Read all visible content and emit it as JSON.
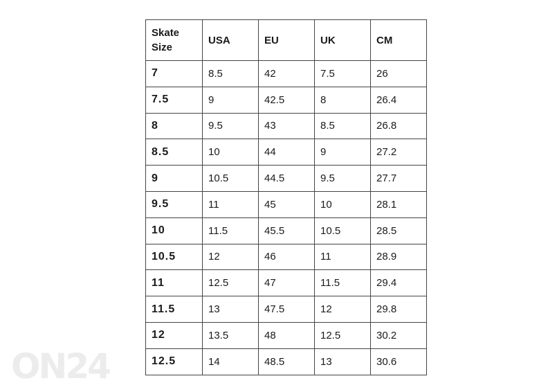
{
  "watermark": "ON24",
  "table": {
    "headers": [
      "Skate Size",
      "USA",
      "EU",
      "UK",
      "CM"
    ],
    "rows": [
      [
        "7",
        "8.5",
        "42",
        "7.5",
        "26"
      ],
      [
        "7.5",
        "9",
        "42.5",
        "8",
        "26.4"
      ],
      [
        "8",
        "9.5",
        "43",
        "8.5",
        "26.8"
      ],
      [
        "8.5",
        "10",
        "44",
        "9",
        "27.2"
      ],
      [
        "9",
        "10.5",
        "44.5",
        "9.5",
        "27.7"
      ],
      [
        "9.5",
        "11",
        "45",
        "10",
        "28.1"
      ],
      [
        "10",
        "11.5",
        "45.5",
        "10.5",
        "28.5"
      ],
      [
        "10.5",
        "12",
        "46",
        "11",
        "28.9"
      ],
      [
        "11",
        "12.5",
        "47",
        "11.5",
        "29.4"
      ],
      [
        "11.5",
        "13",
        "47.5",
        "12",
        "29.8"
      ],
      [
        "12",
        "13.5",
        "48",
        "12.5",
        "30.2"
      ],
      [
        "12.5",
        "14",
        "48.5",
        "13",
        "30.6"
      ]
    ]
  }
}
